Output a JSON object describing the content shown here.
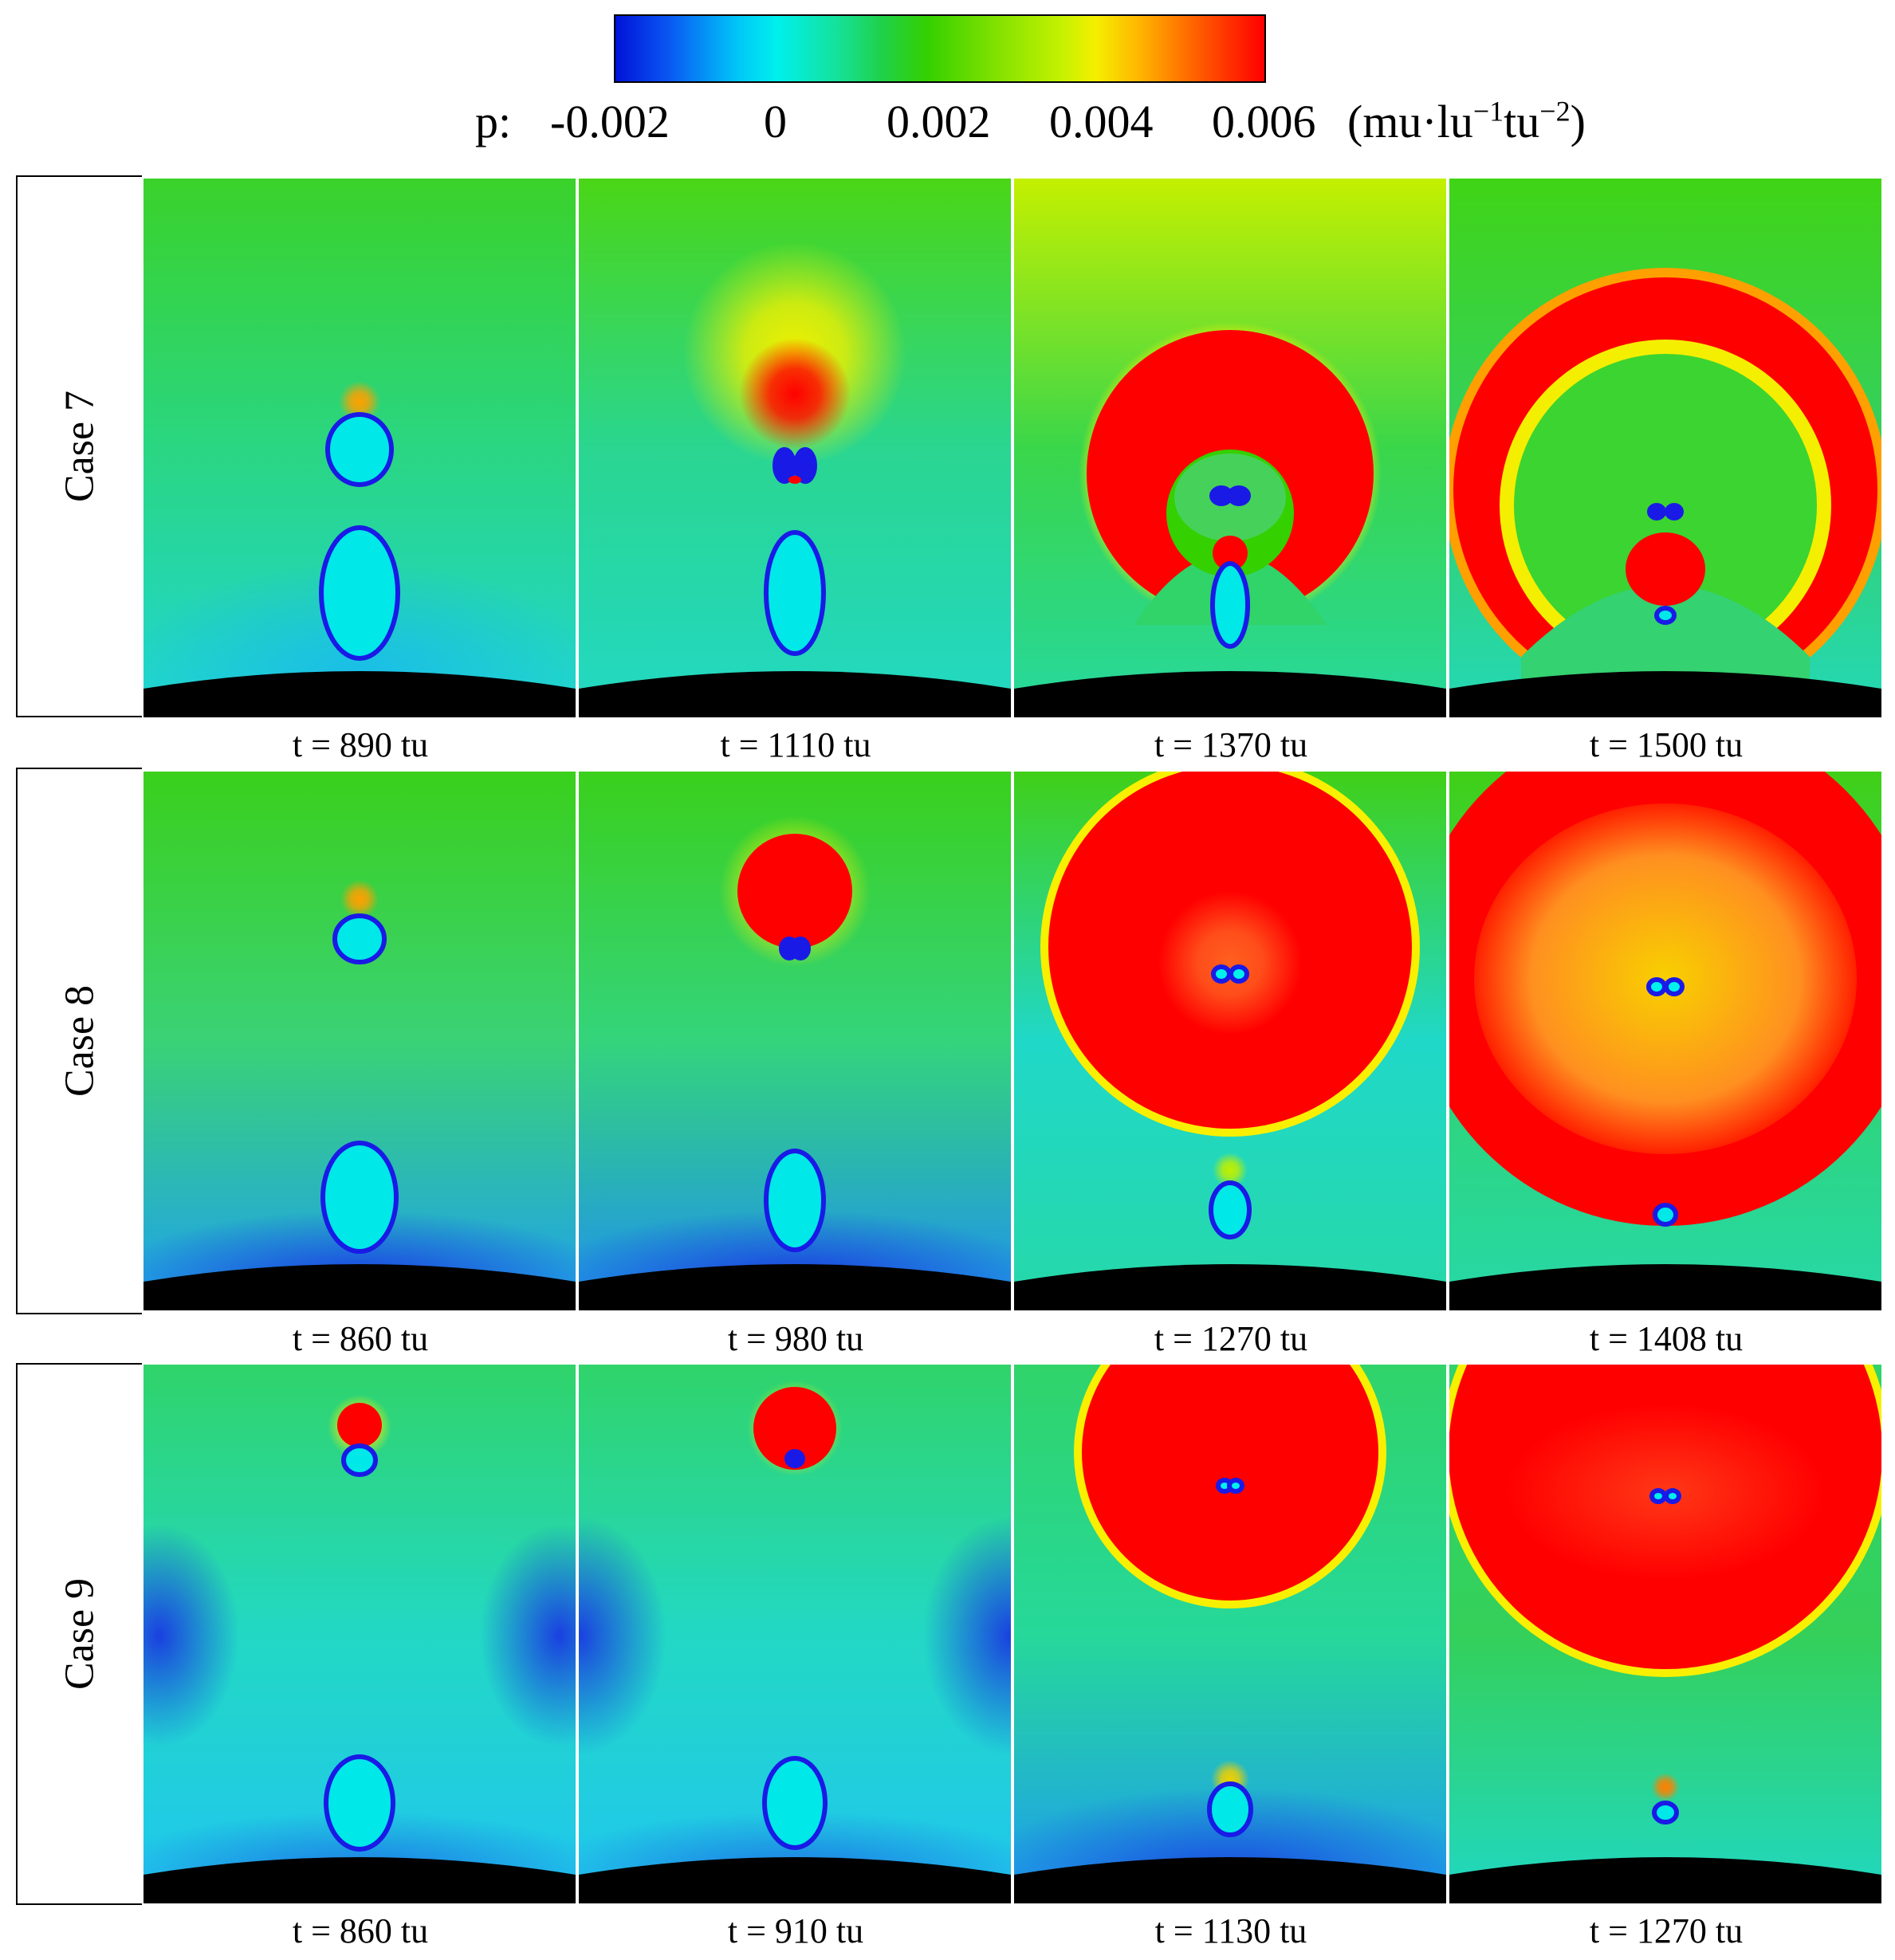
{
  "legend": {
    "variable_label": "p:",
    "tick_labels": [
      "-0.002",
      "0",
      "0.002",
      "0.004",
      "0.006"
    ],
    "units_base": "(mu·lu",
    "units_sup1": "−1",
    "units_mid": "tu",
    "units_sup2": "−2",
    "units_close": ")",
    "colormap": [
      "#0012d8",
      "#00f0ec",
      "#34d000",
      "#f4ef00",
      "#ff0000"
    ]
  },
  "rows": [
    {
      "case_label": "Case 7",
      "panels": [
        {
          "time_label": "t = 890 tu"
        },
        {
          "time_label": "t = 1110 tu"
        },
        {
          "time_label": "t = 1370 tu"
        },
        {
          "time_label": "t = 1500 tu"
        }
      ]
    },
    {
      "case_label": "Case 8",
      "panels": [
        {
          "time_label": "t = 860 tu"
        },
        {
          "time_label": "t = 980 tu"
        },
        {
          "time_label": "t = 1270 tu"
        },
        {
          "time_label": "t = 1408 tu"
        }
      ]
    },
    {
      "case_label": "Case 9",
      "panels": [
        {
          "time_label": "t = 860 tu"
        },
        {
          "time_label": "t = 910 tu"
        },
        {
          "time_label": "t = 1130 tu"
        },
        {
          "time_label": "t = 1270 tu"
        }
      ]
    }
  ]
}
